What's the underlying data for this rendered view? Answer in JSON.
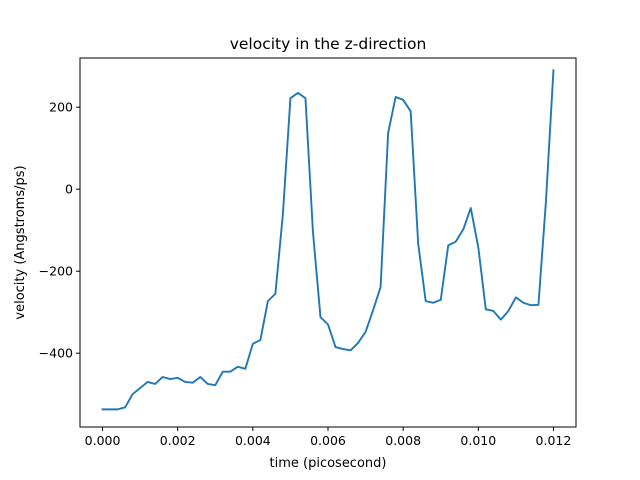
{
  "chart_data": {
    "type": "line",
    "title": "velocity in the z-direction",
    "xlabel": "time (picosecond)",
    "ylabel": "velocity (Angstroms/ps)",
    "xlim": [
      -0.0006,
      0.0126
    ],
    "ylim": [
      -580,
      320
    ],
    "xticks": [
      0.0,
      0.002,
      0.004,
      0.006,
      0.008,
      0.01,
      0.012
    ],
    "xtick_labels": [
      "0.000",
      "0.002",
      "0.004",
      "0.006",
      "0.008",
      "0.010",
      "0.012"
    ],
    "yticks": [
      -400,
      -200,
      0,
      200
    ],
    "ytick_labels": [
      "−400",
      "−200",
      "0",
      "200"
    ],
    "grid": false,
    "series": [
      {
        "color": "#1f77b4",
        "x": [
          0.0,
          0.0002,
          0.0004,
          0.0006,
          0.0008,
          0.001,
          0.0012,
          0.0014,
          0.0016,
          0.0018,
          0.002,
          0.0022,
          0.0024,
          0.0026,
          0.0028,
          0.003,
          0.0032,
          0.0034,
          0.0036,
          0.0038,
          0.004,
          0.0042,
          0.0044,
          0.0046,
          0.0048,
          0.005,
          0.0052,
          0.0054,
          0.0056,
          0.0058,
          0.006,
          0.0062,
          0.0064,
          0.0066,
          0.0068,
          0.007,
          0.0072,
          0.0074,
          0.0076,
          0.0078,
          0.008,
          0.0082,
          0.0084,
          0.0086,
          0.0088,
          0.009,
          0.0092,
          0.0094,
          0.0096,
          0.0098,
          0.01,
          0.0102,
          0.0104,
          0.0106,
          0.0108,
          0.011,
          0.0112,
          0.0114,
          0.0116,
          0.0118,
          0.012
        ],
        "y": [
          -537,
          -537,
          -537,
          -532,
          -500,
          -485,
          -470,
          -475,
          -458,
          -463,
          -460,
          -470,
          -472,
          -458,
          -475,
          -478,
          -445,
          -445,
          -433,
          -438,
          -377,
          -368,
          -273,
          -255,
          -60,
          222,
          235,
          222,
          -105,
          -312,
          -330,
          -385,
          -390,
          -393,
          -375,
          -348,
          -295,
          -238,
          137,
          225,
          218,
          190,
          -133,
          -273,
          -277,
          -270,
          -137,
          -128,
          -98,
          -46,
          -142,
          -293,
          -297,
          -318,
          -297,
          -264,
          -277,
          -283,
          -282,
          -30,
          290
        ]
      }
    ]
  }
}
